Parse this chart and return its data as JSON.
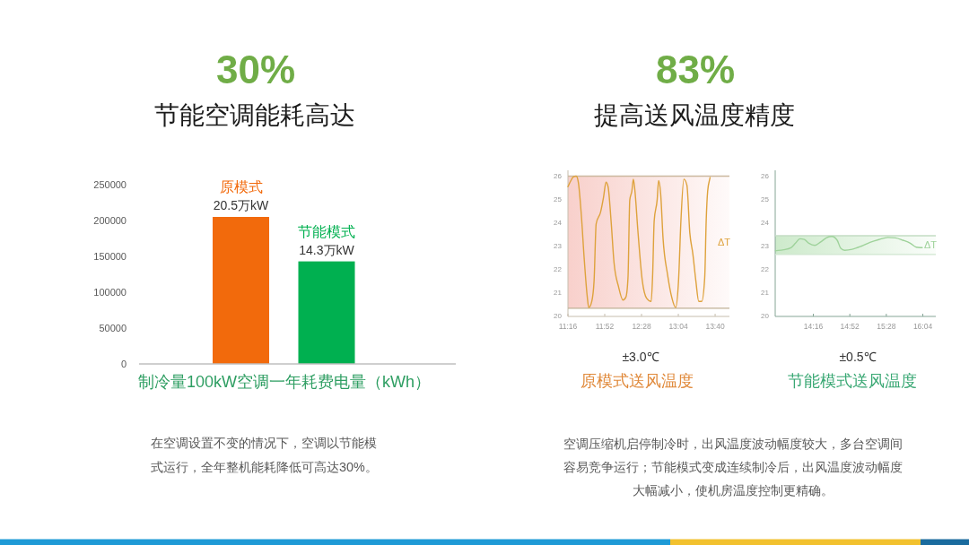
{
  "chart_data": [
    {
      "type": "bar",
      "title": "30%",
      "subtitle": "节能空调能耗高达",
      "categories": [
        "原模式",
        "节能模式"
      ],
      "values": [
        205000,
        143000
      ],
      "colors": [
        "#f26a0c",
        "#00b050"
      ],
      "ylim": [
        0,
        250000
      ],
      "yticks": [
        0,
        50000,
        100000,
        150000,
        200000,
        250000
      ],
      "xlabel": "制冷量100kW空调一年耗费电量（kWh）",
      "annotations": [
        {
          "text": "20.5万kW",
          "x": "原模式",
          "y": 205000
        },
        {
          "text": "14.3万kW",
          "x": "节能模式",
          "y": 143000
        },
        "在空调设置不变的情况下，空调以节能模式运行，全年整机能耗降低可高达30%。"
      ]
    },
    {
      "type": "other",
      "title": "83%",
      "subtitle": "提高送风温度精度",
      "annotations": [
        "空调压缩机启停制冷时，出风温度波动幅度较大，多台空调间容易竞争运行；节能模式变成连续制冷后，出风温度波动幅度大幅减小，使机房温度控制更精确。"
      ]
    },
    {
      "type": "line",
      "color": "#dea23c",
      "x": [
        11.267,
        11.315,
        11.354,
        11.402,
        11.436,
        11.485,
        11.533,
        11.582,
        11.606,
        11.655,
        11.693,
        11.727,
        11.8,
        11.848,
        11.887,
        11.921,
        11.97,
        12.018,
        12.091,
        12.164,
        12.212,
        12.246,
        12.275,
        12.309,
        12.333,
        12.357,
        12.406,
        12.479,
        12.551,
        12.624,
        12.648,
        12.673,
        12.721,
        12.745,
        12.779,
        12.818,
        12.891,
        12.964,
        13.022,
        13.07,
        13.109,
        13.157,
        13.206,
        13.254,
        13.303,
        13.352,
        13.4,
        13.448,
        13.497,
        13.521,
        13.545,
        13.584
      ],
      "values": [
        25.55,
        25.81,
        25.97,
        26.0,
        25.74,
        24.34,
        22.43,
        20.83,
        20.38,
        20.64,
        21.53,
        23.96,
        24.47,
        25.11,
        25.74,
        25.55,
        24.09,
        22.3,
        21.28,
        20.7,
        20.83,
        21.66,
        24.98,
        25.36,
        25.87,
        25.43,
        23.7,
        21.53,
        20.77,
        20.64,
        21.79,
        24.09,
        24.98,
        25.81,
        25.23,
        23.32,
        21.79,
        20.77,
        20.38,
        21.53,
        24.09,
        25.87,
        25.62,
        23.57,
        22.68,
        21.53,
        20.64,
        20.64,
        21.66,
        24.09,
        25.36,
        25.94
      ],
      "xlim": [
        11.2667,
        13.9
      ],
      "ylim": [
        20,
        26.25
      ],
      "xticks": [
        {
          "value": 11.2667,
          "label": "11:16"
        },
        {
          "value": 11.8667,
          "label": "11:52"
        },
        {
          "value": 12.4667,
          "label": "12:28"
        },
        {
          "value": 13.0667,
          "label": "13:04"
        },
        {
          "value": 13.6667,
          "label": "13:40"
        }
      ],
      "yticks": [
        20,
        21,
        22,
        23,
        24,
        25,
        26
      ],
      "bands": [
        {
          "axis": "y",
          "from": 20.35,
          "to": 26,
          "label": "ΔT",
          "color": "#f8d0cb"
        }
      ],
      "ref_lines": [
        {
          "axis": "y",
          "value": 26,
          "color": "#cbb89e"
        },
        {
          "axis": "y",
          "value": 20.35,
          "color": "#bfb096"
        }
      ],
      "annotations": [
        "±3.0℃",
        "原模式送风温度"
      ]
    },
    {
      "type": "line",
      "color": "#9ed29a",
      "x": [
        13.644,
        13.776,
        13.899,
        13.972,
        14.046,
        14.119,
        14.193,
        14.291,
        14.389,
        14.487,
        14.571,
        14.659,
        14.718,
        14.782,
        14.904,
        15.052,
        15.199,
        15.346,
        15.493,
        15.616,
        15.739,
        15.861,
        15.959,
        16.057
      ],
      "values": [
        22.81,
        22.85,
        22.94,
        23.13,
        23.32,
        23.29,
        23.13,
        23.04,
        23.19,
        23.37,
        23.42,
        23.26,
        22.91,
        22.83,
        22.87,
        23.0,
        23.17,
        23.29,
        23.38,
        23.36,
        23.26,
        23.13,
        22.96,
        22.94
      ],
      "xlim": [
        13.64,
        16.28
      ],
      "ylim": [
        20,
        26.25
      ],
      "xticks": [
        {
          "value": 14.2667,
          "label": "14:16"
        },
        {
          "value": 14.8667,
          "label": "14:52"
        },
        {
          "value": 15.4667,
          "label": "15:28"
        },
        {
          "value": 16.0667,
          "label": "16:04"
        }
      ],
      "yticks": [
        20,
        21,
        22,
        23,
        24,
        25,
        26
      ],
      "bands": [
        {
          "axis": "y",
          "from": 22.65,
          "to": 23.45,
          "label": "ΔT",
          "color": "#cdeacb"
        }
      ],
      "ref_lines": [
        {
          "axis": "y",
          "value": 23.45,
          "color": "#c3dcc3"
        },
        {
          "axis": "y",
          "value": 22.65,
          "color": "#cfe6cf"
        }
      ],
      "annotations": [
        "±0.5℃",
        "节能模式送风温度"
      ]
    }
  ]
}
